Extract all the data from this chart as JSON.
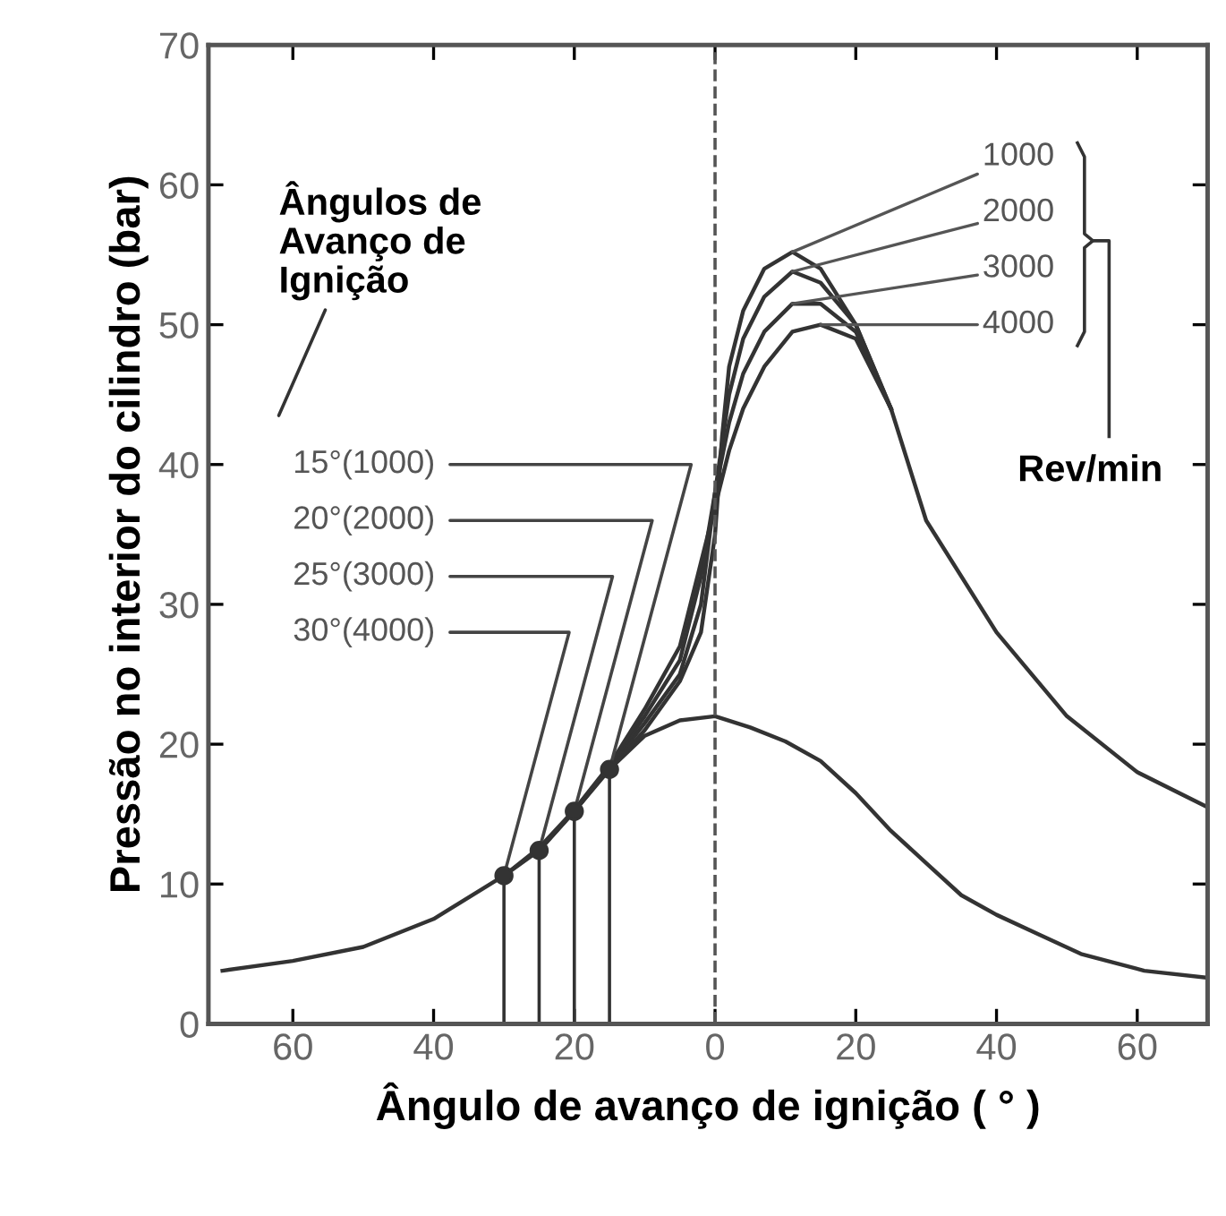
{
  "chart_data": {
    "type": "line",
    "xlabel": "Ângulo de avanço de ignição ( ° )",
    "ylabel": "Pressão no interior do cilindro (bar)",
    "xlim": [
      -72,
      70
    ],
    "ylim": [
      0,
      70
    ],
    "xticks": [
      {
        "value": -60,
        "label": "60"
      },
      {
        "value": -40,
        "label": "40"
      },
      {
        "value": -20,
        "label": "20"
      },
      0,
      20,
      40,
      60
    ],
    "yticks": [
      0,
      10,
      20,
      30,
      40,
      50,
      60,
      70
    ],
    "grid": false,
    "legend": false,
    "line_style": "solid",
    "marker": "none",
    "series": [
      {
        "color": "#333333",
        "x": [
          -70,
          -60,
          -50,
          -40,
          -30,
          -25,
          -20,
          -15,
          -10,
          -5,
          0,
          5,
          10,
          15,
          20,
          25,
          30,
          35,
          40,
          46,
          52,
          61,
          70
        ],
        "values": [
          3.8,
          4.5,
          5.5,
          7.5,
          10.6,
          12.4,
          15.2,
          18.2,
          20.6,
          21.7,
          22,
          21.2,
          20.2,
          18.8,
          16.5,
          13.8,
          11.5,
          9.2,
          7.8,
          6.4,
          5,
          3.8,
          3.3
        ]
      },
      {
        "name": "1000",
        "color": "#333333",
        "x": [
          -15,
          -10,
          -5,
          -2,
          0,
          1,
          2,
          4,
          7,
          11,
          15,
          20,
          25,
          30,
          40,
          50,
          60,
          70
        ],
        "values": [
          18.2,
          21,
          24.5,
          28,
          35,
          42,
          47,
          51,
          54,
          55.2,
          54,
          50,
          44,
          36,
          28,
          22,
          18,
          15.5
        ]
      },
      {
        "name": "2000",
        "color": "#333333",
        "x": [
          -20,
          -15,
          -10,
          -5,
          -2,
          0,
          2,
          4,
          7,
          11,
          15,
          20,
          25
        ],
        "values": [
          15.2,
          18.3,
          21.5,
          25,
          30,
          38,
          45,
          49,
          52,
          53.8,
          53,
          50,
          44
        ]
      },
      {
        "name": "3000",
        "color": "#333333",
        "x": [
          -25,
          -20,
          -15,
          -10,
          -5,
          -2,
          0,
          2,
          4,
          7,
          11,
          15,
          20,
          25
        ],
        "values": [
          12.4,
          15.2,
          18.4,
          22,
          26,
          32,
          38,
          43,
          46.5,
          49.5,
          51.5,
          51.5,
          49.5,
          44
        ]
      },
      {
        "name": "4000",
        "color": "#333333",
        "x": [
          -30,
          -25,
          -20,
          -15,
          -10,
          -5,
          -2,
          0,
          2,
          4,
          7,
          11,
          15,
          20,
          25
        ],
        "values": [
          10.6,
          12.6,
          15.3,
          18.5,
          22.5,
          27,
          33,
          37,
          41,
          44,
          47,
          49.5,
          50,
          49,
          44
        ]
      },
      {
        "type": "lollipop",
        "color": "#333333",
        "marker": "circle",
        "x": [
          -30,
          -25,
          -20,
          -15
        ],
        "values": [
          10.6,
          12.4,
          15.2,
          18.2
        ]
      }
    ],
    "ref_lines": [
      {
        "axis": "x",
        "value": 0,
        "color": "#555555",
        "line_style": "dashed"
      }
    ],
    "annotations": [
      "Ângulos de\nAvanço de\nIgnição",
      {
        "text": "15°(1000)",
        "x": -15,
        "y": 18.2
      },
      {
        "text": "20°(2000)",
        "x": -20,
        "y": 15.2
      },
      {
        "text": "25°(3000)",
        "x": -25,
        "y": 12.4
      },
      {
        "text": "30°(4000)",
        "x": -30,
        "y": 10.6
      },
      "Rev/min"
    ]
  }
}
